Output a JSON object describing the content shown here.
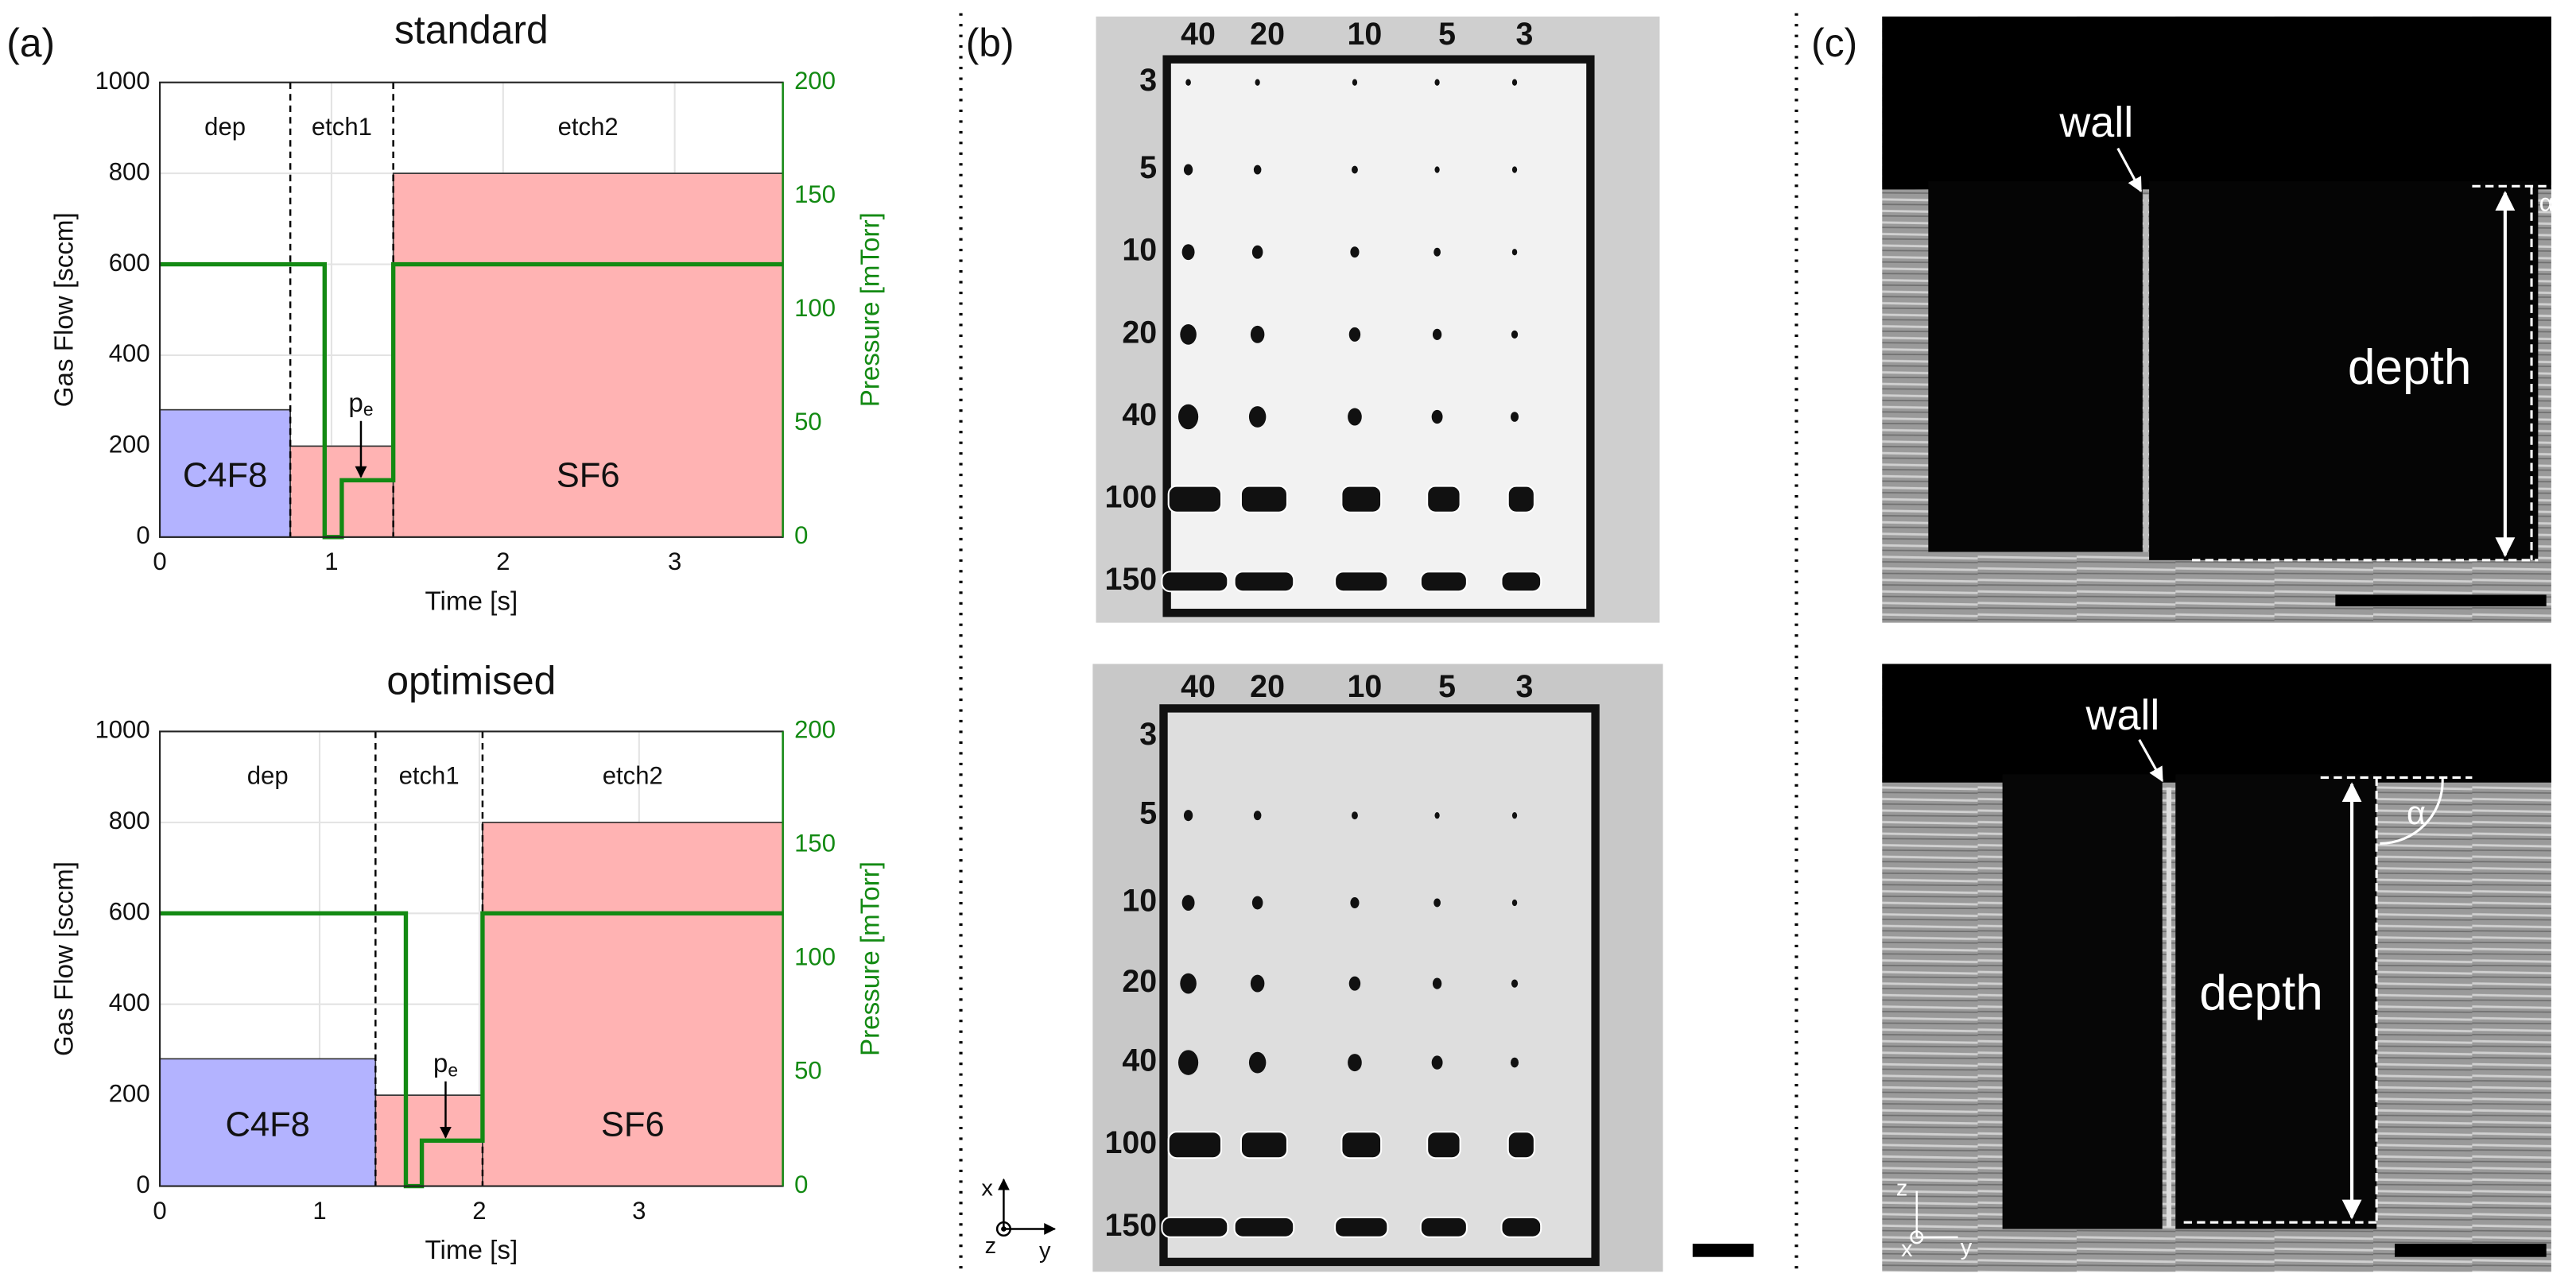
{
  "panel_labels": [
    "(a)",
    "(b)",
    "(c)"
  ],
  "chart_data": [
    {
      "type": "step",
      "title": "standard",
      "xlabel": "Time [s]",
      "ylabel": "Gas Flow [sccm]",
      "y2label": "Pressure [mTorr]",
      "xlim": [
        0,
        3.63
      ],
      "xticks": [
        0,
        1,
        2,
        3
      ],
      "ylim": [
        0,
        1000
      ],
      "yticks": [
        0,
        200,
        400,
        600,
        800,
        1000
      ],
      "y2lim": [
        0,
        200
      ],
      "y2ticks": [
        0,
        50,
        100,
        150,
        200
      ],
      "grid": true,
      "phases": [
        {
          "name": "dep",
          "start": 0,
          "end": 0.76
        },
        {
          "name": "etch1",
          "start": 0.76,
          "end": 1.36
        },
        {
          "name": "etch2",
          "start": 1.36,
          "end": 3.63
        }
      ],
      "series": [
        {
          "name": "C4F8",
          "color": "#b3b3ff",
          "bins": [
            0,
            0.76
          ],
          "values": [
            280
          ]
        },
        {
          "name": "SF6",
          "color": "#ffb3b3",
          "bins": [
            0.76,
            1.36,
            3.63
          ],
          "values": [
            200,
            800
          ]
        },
        {
          "color": "#138a13",
          "axis": "y2",
          "x": [
            0,
            0.96,
            0.96,
            1.06,
            1.06,
            1.36,
            1.36,
            3.63
          ],
          "values": [
            120,
            120,
            0,
            0,
            25,
            25,
            120,
            120
          ]
        }
      ],
      "annotation": {
        "text": "p",
        "subscript": "e"
      }
    },
    {
      "type": "step",
      "title": "optimised",
      "xlabel": "Time [s]",
      "ylabel": "Gas Flow [sccm]",
      "y2label": "Pressure [mTorr]",
      "xlim": [
        0,
        3.9
      ],
      "xticks": [
        0,
        1,
        2,
        3
      ],
      "ylim": [
        0,
        1000
      ],
      "yticks": [
        0,
        200,
        400,
        600,
        800,
        1000
      ],
      "y2lim": [
        0,
        200
      ],
      "y2ticks": [
        0,
        50,
        100,
        150,
        200
      ],
      "grid": true,
      "phases": [
        {
          "name": "dep",
          "start": 0,
          "end": 1.35
        },
        {
          "name": "etch1",
          "start": 1.35,
          "end": 2.02
        },
        {
          "name": "etch2",
          "start": 2.02,
          "end": 3.9
        }
      ],
      "series": [
        {
          "name": "C4F8",
          "color": "#b3b3ff",
          "bins": [
            0,
            1.35
          ],
          "values": [
            280
          ]
        },
        {
          "name": "SF6",
          "color": "#ffb3b3",
          "bins": [
            1.35,
            2.02,
            3.9
          ],
          "values": [
            200,
            800
          ]
        },
        {
          "color": "#138a13",
          "axis": "y2",
          "x": [
            0,
            1.54,
            1.54,
            1.64,
            1.64,
            2.02,
            2.02,
            3.9
          ],
          "values": [
            120,
            120,
            0,
            0,
            20,
            20,
            120,
            120
          ]
        }
      ],
      "annotation": {
        "text": "p",
        "subscript": "e"
      }
    }
  ],
  "panel_b": {
    "images": [
      {
        "columns": [
          "40",
          "20",
          "10",
          "5",
          "3"
        ],
        "rows": [
          "3",
          "5",
          "10",
          "20",
          "40",
          "100",
          "150"
        ]
      },
      {
        "columns": [
          "40",
          "20",
          "10",
          "5",
          "3"
        ],
        "rows": [
          "3",
          "5",
          "10",
          "20",
          "40",
          "100",
          "150"
        ],
        "axes": [
          "x",
          "z",
          "y"
        ]
      }
    ]
  },
  "panel_c": {
    "images": [
      {
        "wall": "wall",
        "depth": "depth",
        "angle": "α"
      },
      {
        "wall": "wall",
        "depth": "depth",
        "angle": "α",
        "axes": [
          "z",
          "x",
          "y"
        ]
      }
    ]
  }
}
